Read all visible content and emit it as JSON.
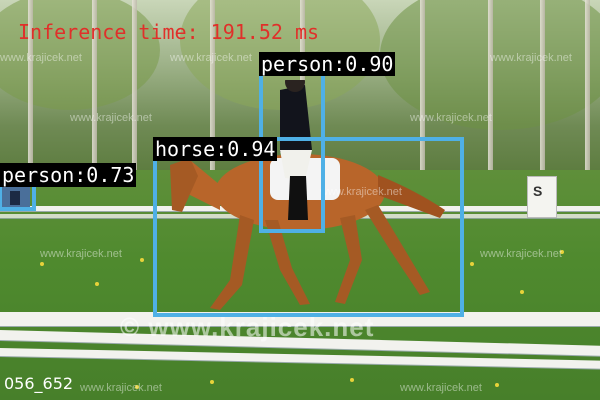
{
  "overlay": {
    "inference_text": "Inference time: 191.52 ms",
    "frame_id": "056_652",
    "box_color": "#4fb0e6",
    "inference_color": "#e0302a"
  },
  "detections": [
    {
      "label": "person:0.90",
      "class": "person",
      "score": 0.9
    },
    {
      "label": "horse:0.94",
      "class": "horse",
      "score": 0.94
    },
    {
      "label": "person:0.73",
      "class": "person",
      "score": 0.73
    }
  ],
  "watermark": {
    "small": "www.krajicek.net",
    "large": "© www.krajicek.net"
  },
  "sign": {
    "text": "S"
  }
}
